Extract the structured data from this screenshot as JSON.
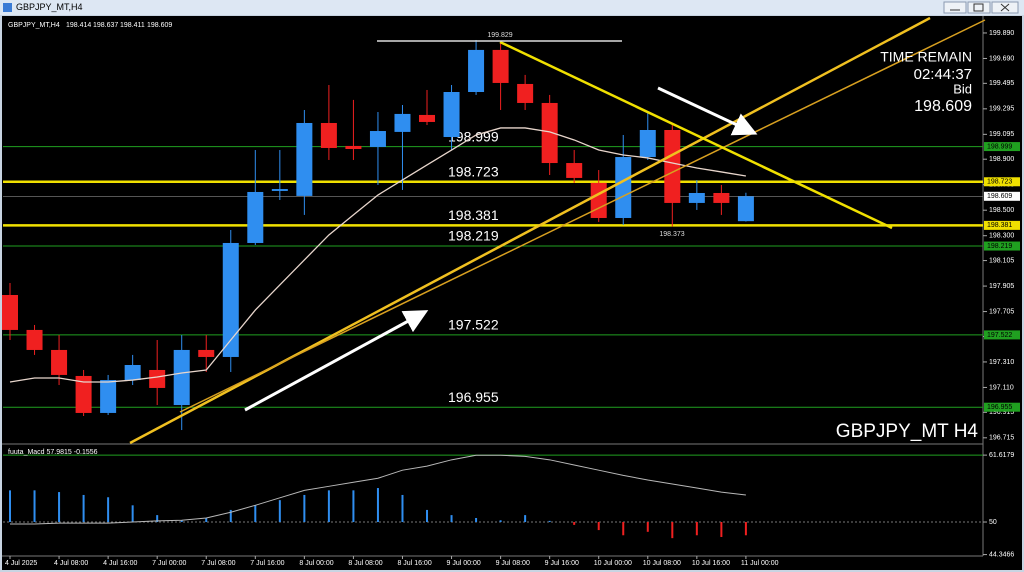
{
  "chart_data": [
    {
      "type": "candlestick",
      "title": "GBPJPY_MT,H4",
      "categories": [
        "4 Jul 2025",
        null,
        "4 Jul 08:00",
        null,
        "4 Jul 16:00",
        null,
        "7 Jul 00:00",
        null,
        "7 Jul 08:00",
        null,
        "7 Jul 16:00",
        null,
        "8 Jul 00:00",
        null,
        "8 Jul 08:00",
        null,
        "8 Jul 16:00",
        null,
        "9 Jul 00:00",
        null,
        "9 Jul 08:00",
        null,
        "9 Jul 16:00",
        null,
        "10 Jul 00:00",
        null,
        "10 Jul 08:00",
        null,
        "10 Jul 16:00",
        null,
        "11 Jul 00:00"
      ],
      "open": [
        197.835,
        197.561,
        197.404,
        197.2,
        196.91,
        197.168,
        197.247,
        196.972,
        197.404,
        197.349,
        198.243,
        198.651,
        198.612,
        199.184,
        199.004,
        198.996,
        199.114,
        199.247,
        199.074,
        199.427,
        199.757,
        199.49,
        199.341,
        198.87,
        198.714,
        198.439,
        198.917,
        199.129,
        198.557,
        198.635,
        198.414
      ],
      "high": [
        197.929,
        197.6,
        197.521,
        197.247,
        197.208,
        197.365,
        197.482,
        197.521,
        197.521,
        198.345,
        198.972,
        198.972,
        199.286,
        199.482,
        199.365,
        199.27,
        199.325,
        199.443,
        199.482,
        199.835,
        199.829,
        199.561,
        199.404,
        198.972,
        198.815,
        199.09,
        199.27,
        199.184,
        198.737,
        198.698,
        198.637
      ],
      "low": [
        197.482,
        197.365,
        197.129,
        196.886,
        196.894,
        197.129,
        196.972,
        196.776,
        197.231,
        197.231,
        198.227,
        198.58,
        198.463,
        198.894,
        198.894,
        198.698,
        198.659,
        199.168,
        198.972,
        199.404,
        199.286,
        199.286,
        198.776,
        198.714,
        198.408,
        198.384,
        198.894,
        198.373,
        198.502,
        198.463,
        198.411
      ],
      "close": [
        197.561,
        197.404,
        197.208,
        196.91,
        197.168,
        197.286,
        197.106,
        197.404,
        197.349,
        198.243,
        198.643,
        198.666,
        199.184,
        198.988,
        198.98,
        199.121,
        199.255,
        199.192,
        199.427,
        199.757,
        199.498,
        199.341,
        198.87,
        198.753,
        198.439,
        198.917,
        199.129,
        198.557,
        198.635,
        198.557,
        198.609
      ],
      "up_color": "#2f8ef0",
      "down_color": "#f02020",
      "ma": {
        "color": "#e8d6cc",
        "values": [
          197.153,
          197.184,
          197.184,
          197.153,
          197.153,
          197.168,
          197.192,
          197.223,
          197.247,
          197.482,
          197.717,
          197.914,
          198.11,
          198.306,
          198.463,
          198.619,
          198.737,
          198.855,
          198.972,
          199.09,
          199.145,
          199.145,
          199.114,
          199.051,
          198.972,
          198.933,
          198.91,
          198.87,
          198.831,
          198.8,
          198.768
        ]
      },
      "levels": [
        {
          "value": 198.999,
          "color": "#20a020"
        },
        {
          "value": 198.723,
          "color": "#f0e000"
        },
        {
          "value": 198.381,
          "color": "#f0e000"
        },
        {
          "value": 198.219,
          "color": "#20a020"
        },
        {
          "value": 197.522,
          "color": "#20a020"
        },
        {
          "value": 196.955,
          "color": "#20a020"
        }
      ],
      "info": {
        "time_label": "TIME REMAIN",
        "time": "02:44:37",
        "bid_label": "Bid"
      },
      "symbol_label": "GBPJPY_MT H4",
      "ylim": [
        196.69,
        199.976
      ],
      "yticks": [
        {
          "value": 199.89,
          "label": "199.890"
        },
        {
          "value": 199.69,
          "label": "199.690"
        },
        199.495,
        199.295,
        199.095,
        {
          "value": 198.9,
          "label": "198.900"
        },
        {
          "value": 198.7,
          "label": "198.700"
        },
        {
          "value": 198.5,
          "label": "198.500"
        },
        {
          "value": 198.3,
          "label": "198.300"
        },
        198.105,
        197.905,
        197.705,
        {
          "value": 197.51,
          "label": "197.510"
        },
        {
          "value": 197.31,
          "label": "197.310"
        },
        {
          "value": 197.11,
          "label": "197.110"
        },
        196.915,
        196.715
      ]
    },
    {
      "type": "macd",
      "title": "fuuta_Macd 57.9815 -0.1556",
      "values": [
        55.5,
        55.5,
        55.2,
        54.7,
        54.3,
        52.9,
        51.2,
        50.3,
        50.7,
        52.1,
        52.9,
        53.8,
        54.7,
        55.5,
        55.5,
        55.9,
        54.7,
        52.1,
        51.2,
        50.7,
        50.3,
        51.2,
        50.2,
        49.5,
        48.6,
        47.7,
        48.3,
        47.2,
        47.7,
        47.4,
        47.7
      ],
      "signal": {
        "color": "#b8b8b8",
        "values": [
          49.65,
          49.65,
          49.8,
          49.8,
          49.8,
          50,
          50.2,
          50.3,
          50.7,
          51.7,
          52.9,
          54.2,
          55.5,
          56.2,
          56.9,
          57.6,
          59.0,
          59.7,
          60.8,
          61.6,
          61.6,
          61.4,
          60.8,
          59.9,
          59.0,
          58.1,
          57.3,
          56.6,
          55.9,
          55.2,
          54.7
        ]
      },
      "up_color": "#2f8ef0",
      "down_color": "#f02020",
      "ylim": [
        44.1,
        63.2
      ],
      "yticks": [
        61.6179,
        50,
        44.3466
      ]
    }
  ]
}
